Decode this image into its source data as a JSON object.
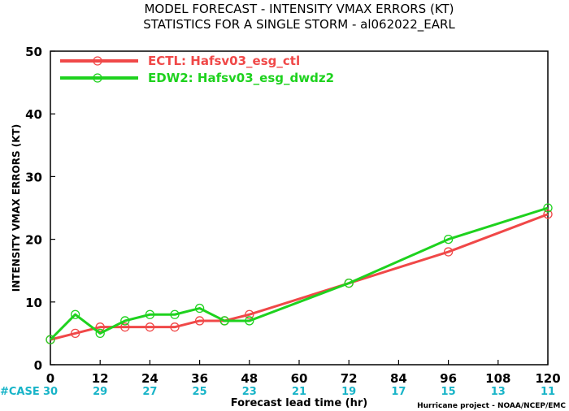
{
  "chart_data": {
    "type": "line",
    "title": "MODEL FORECAST - INTENSITY VMAX ERRORS (KT)",
    "subtitle": "STATISTICS FOR A SINGLE STORM - al062022_EARL",
    "xlabel": "Forecast lead time (hr)",
    "ylabel": "INTENSITY VMAX ERRORS (KT)",
    "xlim": [
      0,
      120
    ],
    "ylim": [
      0,
      50
    ],
    "x_ticks": [
      0,
      12,
      24,
      36,
      48,
      60,
      72,
      84,
      96,
      108,
      120
    ],
    "y_ticks": [
      0,
      10,
      20,
      30,
      40,
      50
    ],
    "grid": false,
    "legend_position": "top-left",
    "series": [
      {
        "name": "ECTL: Hafsv03_esg_ctl",
        "color": "#f04848",
        "x": [
          0,
          6,
          12,
          18,
          24,
          30,
          36,
          42,
          48,
          72,
          96,
          120
        ],
        "values": [
          4,
          5,
          6,
          6,
          6,
          6,
          7,
          7,
          8,
          13,
          18,
          24
        ]
      },
      {
        "name": "EDW2: Hafsv03_esg_dwdz2",
        "color": "#1ed21e",
        "x": [
          0,
          6,
          12,
          18,
          24,
          30,
          36,
          42,
          48,
          72,
          96,
          120
        ],
        "values": [
          4,
          8,
          5,
          7,
          8,
          8,
          9,
          7,
          7,
          13,
          20,
          25
        ]
      }
    ],
    "case_label": "#CASE",
    "case_counts": [
      "30",
      "29",
      "27",
      "25",
      "23",
      "21",
      "19",
      "17",
      "15",
      "13",
      "11"
    ],
    "case_color": "#18b4c8",
    "credit": "Hurricane project - NOAA/NCEP/EMC"
  }
}
